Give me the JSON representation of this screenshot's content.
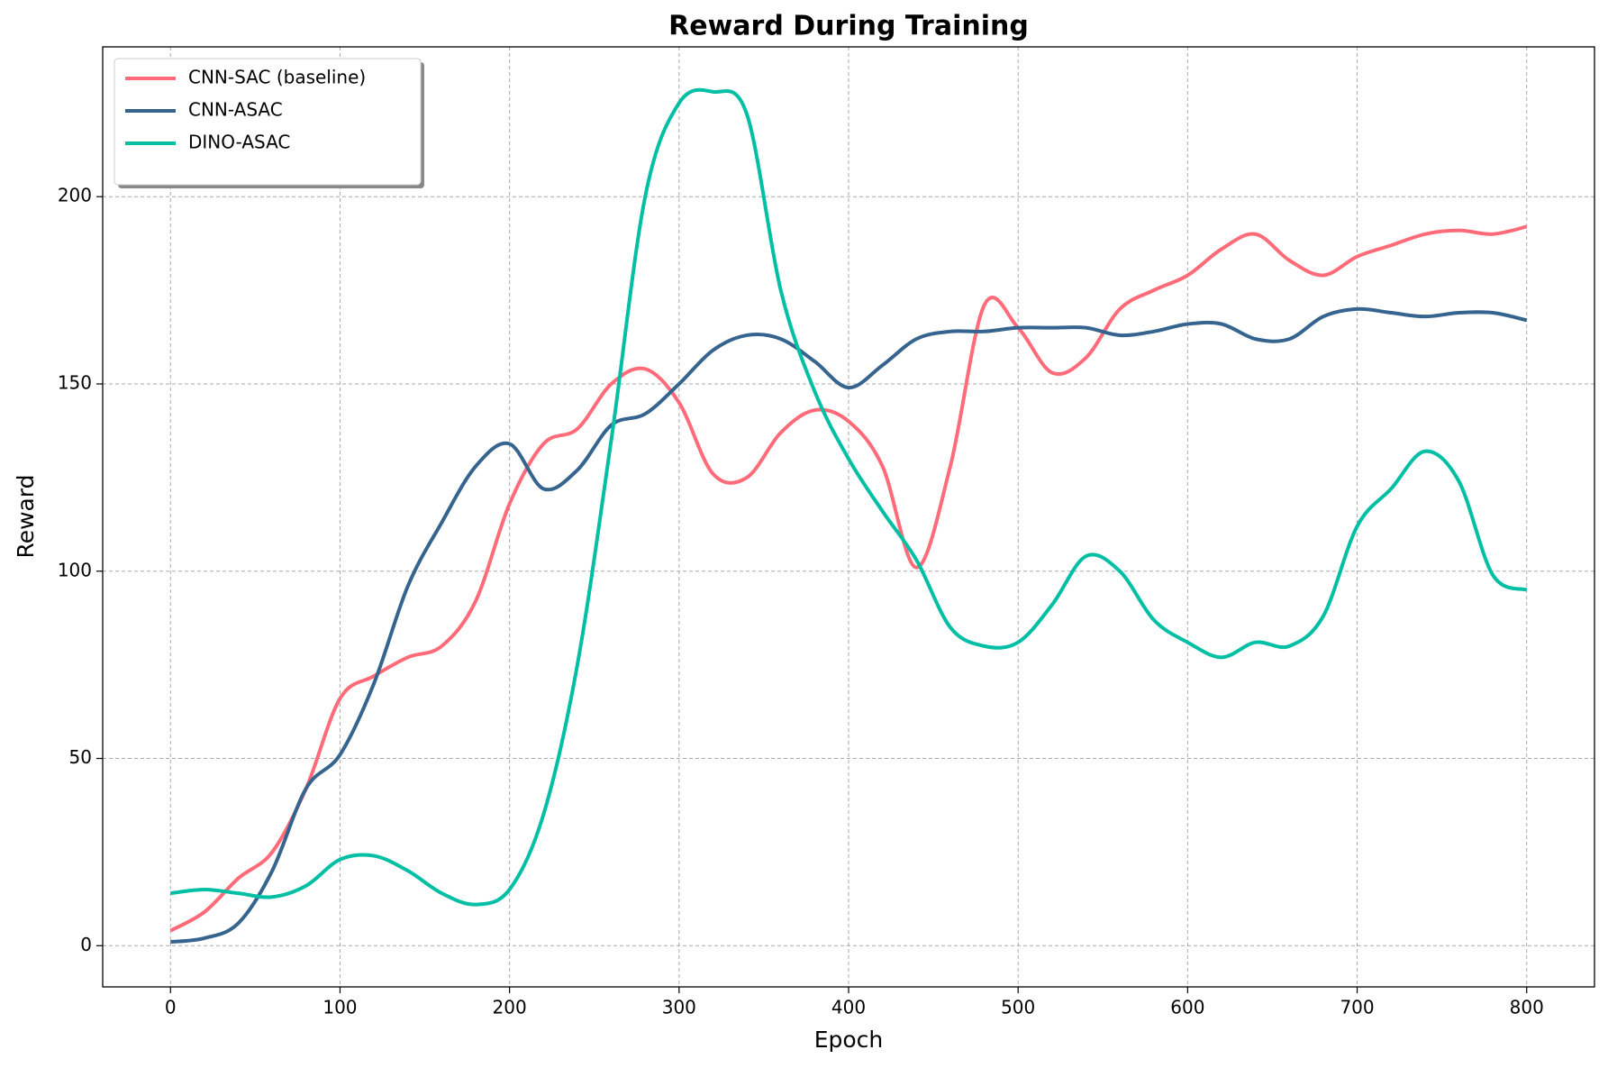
{
  "chart_data": {
    "type": "line",
    "title": "Reward During Training",
    "x_label": "Epoch",
    "y_label": "Reward",
    "x": [
      0,
      20,
      40,
      60,
      80,
      100,
      120,
      140,
      160,
      180,
      200,
      220,
      240,
      260,
      280,
      300,
      320,
      340,
      360,
      380,
      400,
      420,
      440,
      460,
      480,
      500,
      520,
      540,
      560,
      580,
      600,
      620,
      640,
      660,
      680,
      700,
      720,
      740,
      760,
      780,
      800
    ],
    "series": [
      {
        "name": "CNN-SAC (baseline)",
        "color": "#ff6b78",
        "values": [
          4,
          9,
          18,
          25,
          42,
          66,
          72,
          77,
          80,
          92,
          118,
          134,
          138,
          150,
          154,
          145,
          126,
          125,
          137,
          143,
          140,
          128,
          101,
          128,
          171,
          165,
          153,
          157,
          170,
          175,
          179,
          186,
          190,
          183,
          179,
          184,
          187,
          190,
          191,
          190,
          192
        ]
      },
      {
        "name": "CNN-ASAC",
        "color": "#35648f",
        "values": [
          1,
          2,
          6,
          20,
          42,
          51,
          70,
          96,
          113,
          128,
          134,
          122,
          127,
          139,
          142,
          150,
          159,
          163,
          162,
          156,
          149,
          155,
          162,
          164,
          164,
          165,
          165,
          165,
          163,
          164,
          166,
          166,
          162,
          162,
          168,
          170,
          169,
          168,
          169,
          169,
          167
        ]
      },
      {
        "name": "DINO-ASAC",
        "color": "#00bfa5",
        "values": [
          14,
          15,
          14,
          13,
          16,
          23,
          24,
          20,
          14,
          11,
          15,
          35,
          75,
          135,
          200,
          225,
          228,
          222,
          175,
          148,
          130,
          116,
          103,
          85,
          80,
          81,
          91,
          104,
          100,
          87,
          81,
          77,
          81,
          80,
          88,
          112,
          122,
          132,
          124,
          99,
          95
        ]
      }
    ],
    "xlim": [
      -40,
      840
    ],
    "ylim": [
      -11,
      240
    ],
    "xticks": [
      0,
      100,
      200,
      300,
      400,
      500,
      600,
      700,
      800
    ],
    "yticks": [
      0,
      50,
      100,
      150,
      200
    ],
    "grid": true,
    "legend": "upper left"
  }
}
